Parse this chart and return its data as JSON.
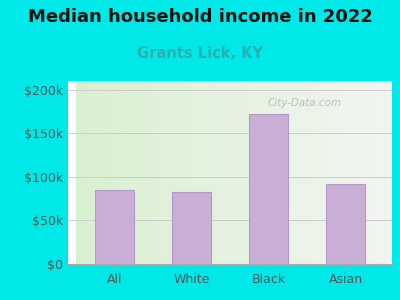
{
  "title": "Median household income in 2022",
  "subtitle": "Grants Lick, KY",
  "categories": [
    "All",
    "White",
    "Black",
    "Asian"
  ],
  "values": [
    85000,
    83000,
    172000,
    92000
  ],
  "bar_color": "#c9aed6",
  "bar_edge_color": "#b898cc",
  "title_fontsize": 13,
  "subtitle_fontsize": 10.5,
  "subtitle_color": "#2ab0b0",
  "tick_label_fontsize": 9,
  "axis_label_color": "#555555",
  "background_outer": "#00e8e8",
  "background_inner_start": "#d8f0d0",
  "background_inner_end": "#f5f5f5",
  "ylim": [
    0,
    210000
  ],
  "yticks": [
    0,
    50000,
    100000,
    150000,
    200000
  ],
  "ytick_labels": [
    "$0",
    "$50k",
    "$100k",
    "$150k",
    "$200k"
  ],
  "watermark": "City-Data.com",
  "grid_color": "#cccccc"
}
